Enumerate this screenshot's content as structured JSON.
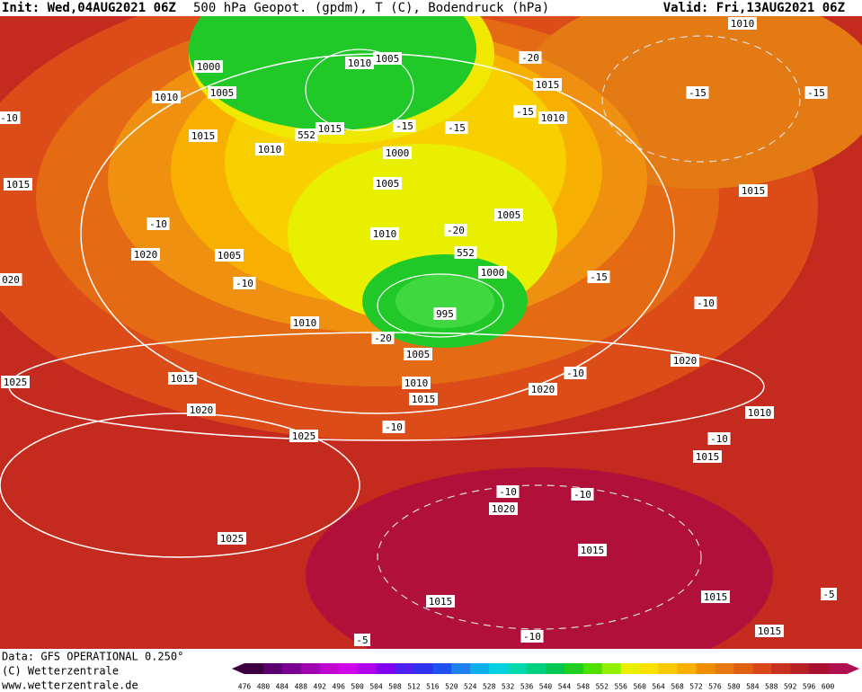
{
  "header": {
    "init": "Init: Wed,04AUG2021 06Z",
    "title": "500 hPa Geopot. (gpdm), T (C), Bodendruck (hPa)",
    "valid": "Valid: Fri,13AUG2021 06Z"
  },
  "footer": {
    "source": "Data: GFS OPERATIONAL 0.250°",
    "copyright": "(C) Wetterzentrale",
    "url": "www.wetterzentrale.de"
  },
  "colorbar": {
    "ticks": [
      476,
      480,
      484,
      488,
      492,
      496,
      500,
      504,
      508,
      512,
      516,
      520,
      524,
      528,
      532,
      536,
      540,
      544,
      548,
      552,
      556,
      560,
      564,
      568,
      572,
      576,
      580,
      584,
      588,
      592,
      596,
      600
    ],
    "colors": [
      "#3a0040",
      "#5a0070",
      "#7a0090",
      "#a000b0",
      "#c000d0",
      "#d000e8",
      "#b000f0",
      "#8000f0",
      "#5020f0",
      "#3030f0",
      "#2050f0",
      "#2080f0",
      "#10b0f0",
      "#00d0e0",
      "#00d8b0",
      "#00d080",
      "#00c850",
      "#20d020",
      "#50e000",
      "#90f000",
      "#e8f000",
      "#f8e000",
      "#f8c800",
      "#f8b000",
      "#f09000",
      "#e87810",
      "#e06010",
      "#d84818",
      "#c83020",
      "#b82028",
      "#a81030",
      "#b01050"
    ]
  },
  "map": {
    "labels": [
      "1010",
      "1000",
      "1010",
      "1005",
      "-20",
      "1015",
      "1005",
      "1010",
      "-15",
      "-15",
      "-15",
      "1010",
      "-10",
      "1015",
      "552",
      "-15",
      "-15",
      "1015",
      "1010",
      "1000",
      "1005",
      "1015",
      "1015",
      "1005",
      "-10",
      "-20",
      "1010",
      "552",
      "1020",
      "1005",
      "1000",
      "-15",
      "020",
      "-10",
      "-10",
      "995",
      "1010",
      "-20",
      "1005",
      "1020",
      "-10",
      "1015",
      "1010",
      "1025",
      "1015",
      "1020",
      "1020",
      "1010",
      "-10",
      "-10",
      "1025",
      "1015",
      "-10",
      "-10",
      "1020",
      "1025",
      "1015",
      "1015",
      "1015",
      "-5",
      "1015",
      "-10",
      "-5"
    ]
  }
}
